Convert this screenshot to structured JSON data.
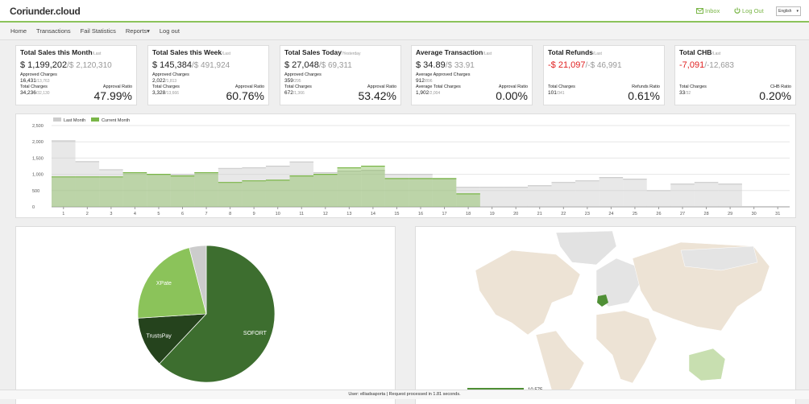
{
  "header": {
    "logo": "Coriunder.cloud",
    "inbox": "Inbox",
    "logout": "Log Out",
    "language": "English"
  },
  "nav": [
    "Home",
    "Transactions",
    "Fail Statistics",
    "Reports▾",
    "Log out"
  ],
  "cards": [
    {
      "title": "Total Sales this Month",
      "period": "/Last",
      "value": "$ 1,199,202",
      "last": "/$ 2,120,310",
      "value_color": "#222222",
      "rows": [
        {
          "label": "Approved Charges",
          "value": "16,431",
          "last": "/13,763"
        },
        {
          "label": "Total Charges",
          "value": "34,236",
          "last": "/32,130"
        }
      ],
      "ratio_label": "Approval Ratio",
      "ratio": "47.99%"
    },
    {
      "title": "Total Sales this Week",
      "period": "/Last",
      "value": "$ 145,384",
      "last": "/$ 491,924",
      "value_color": "#222222",
      "rows": [
        {
          "label": "Approved Charges",
          "value": "2,022",
          "last": "/1,813"
        },
        {
          "label": "Total Charges",
          "value": "3,328",
          "last": "/13,666"
        }
      ],
      "ratio_label": "Approval Ratio",
      "ratio": "60.76%"
    },
    {
      "title": "Total Sales Today",
      "period": "/Yesterday",
      "value": "$ 27,048",
      "last": "/$ 69,311",
      "value_color": "#222222",
      "rows": [
        {
          "label": "Approved Charges",
          "value": "359",
          "last": "/295"
        },
        {
          "label": "Total Charges",
          "value": "672",
          "last": "/1,366"
        }
      ],
      "ratio_label": "Approval Ratio",
      "ratio": "53.42%"
    },
    {
      "title": "Average Transaction",
      "period": "/Last",
      "value": "$ 34.89",
      "last": "/$ 33.91",
      "value_color": "#222222",
      "rows": [
        {
          "label": "Average Approved Charges",
          "value": "912",
          "last": "/896"
        },
        {
          "label": "Average Total Charges",
          "value": "1,902",
          "last": "/2,004"
        }
      ],
      "ratio_label": "Approval Ratio",
      "ratio": "0.00%"
    },
    {
      "title": "Total Refunds",
      "period": "/Last",
      "value": "-$ 21,097",
      "last": "/-$ 46,991",
      "value_color": "#e02020",
      "rows": [
        {
          "label": "Total Charges",
          "value": "101",
          "last": "/341"
        }
      ],
      "ratio_label": "Refunds Ratio",
      "ratio": "0.61%"
    },
    {
      "title": "Total CHB",
      "period": "/Last",
      "value": "-7,091",
      "last": "/-12,683",
      "value_color": "#e02020",
      "rows": [
        {
          "label": "Total Charges",
          "value": "33",
          "last": "/32"
        }
      ],
      "ratio_label": "CHB Ratio",
      "ratio": "0.20%"
    }
  ],
  "chart_data": [
    {
      "type": "step-area",
      "x": [
        1,
        2,
        3,
        4,
        5,
        6,
        7,
        8,
        9,
        10,
        11,
        12,
        13,
        14,
        15,
        16,
        17,
        18,
        19,
        20,
        21,
        22,
        23,
        24,
        25,
        26,
        27,
        28,
        29,
        30,
        31
      ],
      "series": [
        {
          "name": "Last Month",
          "color": "#cccccc",
          "values": [
            2030,
            1390,
            1140,
            1050,
            1000,
            1000,
            1050,
            1180,
            1200,
            1250,
            1380,
            1050,
            1100,
            1120,
            1000,
            1000,
            860,
            600,
            600,
            600,
            650,
            750,
            800,
            900,
            850,
            500,
            700,
            750,
            700,
            null,
            null
          ]
        },
        {
          "name": "Current Month",
          "color": "#7ab648",
          "values": [
            920,
            920,
            920,
            1050,
            1000,
            950,
            1050,
            750,
            800,
            820,
            950,
            1000,
            1200,
            1250,
            870,
            870,
            870,
            400,
            null,
            null,
            null,
            null,
            null,
            null,
            null,
            null,
            null,
            null,
            null,
            null,
            null
          ]
        }
      ],
      "xlim": [
        0.5,
        31.5
      ],
      "xticks": [
        1,
        2,
        3,
        4,
        5,
        6,
        7,
        8,
        9,
        10,
        11,
        12,
        13,
        14,
        15,
        16,
        17,
        18,
        19,
        20,
        21,
        22,
        23,
        24,
        25,
        26,
        27,
        28,
        29,
        30,
        31
      ],
      "ylim": [
        0,
        2500
      ],
      "yticks": [
        0,
        500,
        {
          "value": 1000,
          "label": "1,000"
        },
        {
          "value": 1500,
          "label": "1,500"
        },
        {
          "value": 2000,
          "label": "2,000"
        },
        {
          "value": 2500,
          "label": "2,500"
        }
      ],
      "grid": true,
      "legend": "top-left"
    },
    {
      "type": "pie",
      "categories": [
        "SOFORT",
        "TrustsPay",
        "XPate",
        null
      ],
      "values": [
        62,
        12,
        22,
        4
      ],
      "colors": [
        "#3d6e2f",
        "#25431d",
        "#8bc35a",
        "#cccccc"
      ]
    }
  ],
  "map": {
    "legend_max": "10,575"
  },
  "footer": "User: elliadsaporta  |  Request processed in 1.81 seconds."
}
